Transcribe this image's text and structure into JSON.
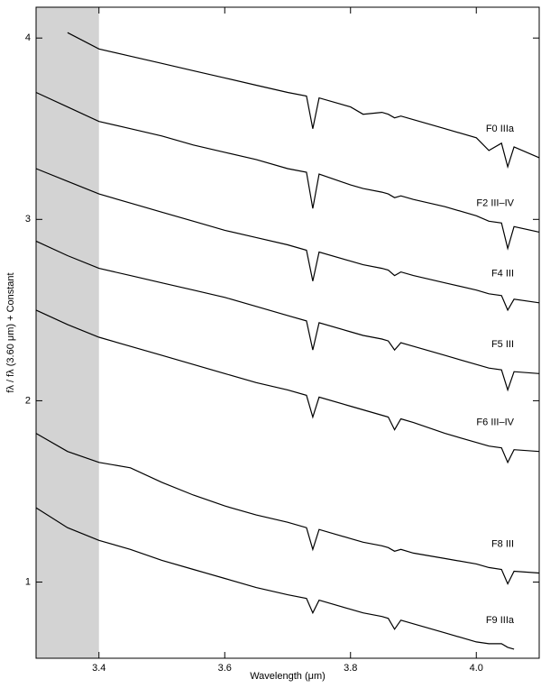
{
  "chart_data": {
    "type": "line",
    "x_label": "Wavelength (μm)",
    "y_label": "fλ / fλ (3.60 μm) + Constant",
    "xlim": [
      3.3,
      4.1
    ],
    "ylim": [
      0.58,
      4.17
    ],
    "xticks": [
      3.4,
      3.6,
      3.8,
      {
        "value": 4,
        "label": "4.0"
      }
    ],
    "yticks": [
      1,
      2,
      3,
      4
    ],
    "shaded_region": [
      3.3,
      3.4
    ],
    "shaded_color": "#d3d3d3",
    "x": [
      3.3,
      3.35,
      3.4,
      3.45,
      3.5,
      3.55,
      3.6,
      3.65,
      3.7,
      3.73,
      3.74,
      3.75,
      3.8,
      3.82,
      3.85,
      3.86,
      3.87,
      3.88,
      3.9,
      3.95,
      4.0,
      4.02,
      4.04,
      4.05,
      4.06,
      4.1
    ],
    "series": [
      {
        "name": "F0 IIIa",
        "color": "#000000",
        "values": [
          null,
          4.03,
          3.94,
          3.9,
          3.86,
          3.82,
          3.78,
          3.74,
          3.7,
          3.68,
          3.5,
          3.67,
          3.62,
          3.58,
          3.59,
          3.58,
          3.56,
          3.57,
          3.55,
          3.5,
          3.45,
          3.38,
          3.42,
          3.29,
          3.4,
          3.34
        ]
      },
      {
        "name": "F2 III–IV",
        "color": "#000000",
        "values": [
          3.7,
          3.62,
          3.54,
          3.5,
          3.46,
          3.41,
          3.37,
          3.33,
          3.28,
          3.26,
          3.06,
          3.25,
          3.19,
          3.17,
          3.15,
          3.14,
          3.12,
          3.13,
          3.11,
          3.07,
          3.02,
          2.99,
          2.98,
          2.84,
          2.96,
          2.93
        ]
      },
      {
        "name": "F4 III",
        "color": "#000000",
        "values": [
          3.28,
          3.21,
          3.14,
          3.09,
          3.04,
          2.99,
          2.94,
          2.9,
          2.86,
          2.83,
          2.66,
          2.82,
          2.77,
          2.75,
          2.73,
          2.72,
          2.69,
          2.71,
          2.69,
          2.65,
          2.61,
          2.59,
          2.58,
          2.5,
          2.56,
          2.54
        ]
      },
      {
        "name": "F5 III",
        "color": "#000000",
        "values": [
          2.88,
          2.8,
          2.73,
          2.69,
          2.65,
          2.61,
          2.57,
          2.52,
          2.47,
          2.44,
          2.28,
          2.43,
          2.38,
          2.36,
          2.34,
          2.33,
          2.28,
          2.32,
          2.3,
          2.25,
          2.2,
          2.18,
          2.17,
          2.06,
          2.16,
          2.15
        ]
      },
      {
        "name": "F6 III–IV",
        "color": "#000000",
        "values": [
          2.5,
          2.42,
          2.35,
          2.3,
          2.25,
          2.2,
          2.15,
          2.1,
          2.06,
          2.03,
          1.91,
          2.02,
          1.97,
          1.95,
          1.92,
          1.91,
          1.84,
          1.9,
          1.88,
          1.82,
          1.77,
          1.75,
          1.74,
          1.66,
          1.73,
          1.72
        ]
      },
      {
        "name": "F8 III",
        "color": "#000000",
        "values": [
          1.82,
          1.72,
          1.66,
          1.63,
          1.55,
          1.48,
          1.42,
          1.37,
          1.33,
          1.3,
          1.18,
          1.29,
          1.24,
          1.22,
          1.2,
          1.19,
          1.17,
          1.18,
          1.16,
          1.13,
          1.1,
          1.08,
          1.07,
          0.99,
          1.06,
          1.05
        ]
      },
      {
        "name": "F9 IIIa",
        "color": "#000000",
        "values": [
          1.41,
          1.3,
          1.23,
          1.18,
          1.12,
          1.07,
          1.02,
          0.97,
          0.93,
          0.91,
          0.83,
          0.9,
          0.85,
          0.83,
          0.81,
          0.8,
          0.74,
          0.79,
          0.77,
          0.72,
          0.67,
          0.66,
          0.66,
          0.64,
          0.63,
          null
        ]
      }
    ]
  }
}
